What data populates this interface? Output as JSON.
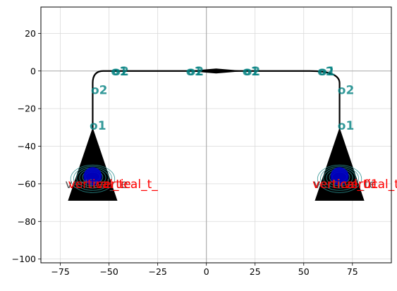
{
  "chart_data": {
    "type": "layout",
    "title": "",
    "xlabel": "",
    "ylabel": "",
    "xlim": [
      -85,
      95
    ],
    "ylim": [
      -102,
      34
    ],
    "xticks": [
      -75,
      -50,
      -25,
      0,
      25,
      50,
      75
    ],
    "yticks": [
      -100,
      -80,
      -60,
      -40,
      -20,
      0,
      20
    ],
    "grid": true,
    "origin_axes": true,
    "route": {
      "points": [
        [
          -58.4,
          -30.6
        ],
        [
          -58.4,
          -6.5
        ],
        [
          -53,
          0
        ],
        [
          53,
          0
        ],
        [
          68.4,
          -6.5
        ],
        [
          68.4,
          -30.6
        ]
      ],
      "color": "#000000"
    },
    "taper": {
      "x_start": -10,
      "x_end": 20,
      "half_width": 1.3
    },
    "grating_couplers": [
      {
        "name": "vertical_te",
        "x": -58.4,
        "label_x": -72.5,
        "label_color": "#555555"
      },
      {
        "name": "vertical_te",
        "x": 68.4,
        "label_x": 55.0,
        "label_color": "#555555"
      }
    ],
    "component_labels": [
      {
        "text": "vertical_te",
        "x": -71.0,
        "y": -60,
        "color": "#ff0000"
      },
      {
        "text": "vertical_t_",
        "x": -56.5,
        "y": -60,
        "color": "#ff0000"
      },
      {
        "text": "vertical_01",
        "x": 54.5,
        "y": -60,
        "color": "#ff0000"
      },
      {
        "text": "vertical_t_",
        "x": 70.5,
        "y": -60,
        "color": "#ff0000"
      }
    ],
    "ports": [
      {
        "text": "o1",
        "x": -60.0,
        "y": -29
      },
      {
        "text": "o2",
        "x": -59.3,
        "y": -10
      },
      {
        "text": "o1",
        "x": -49.0,
        "y": 0
      },
      {
        "text": "o2",
        "x": -48.3,
        "y": 0
      },
      {
        "text": "o1",
        "x": -10.5,
        "y": 0
      },
      {
        "text": "o2",
        "x": -9.8,
        "y": 0
      },
      {
        "text": "o1",
        "x": 18.5,
        "y": 0
      },
      {
        "text": "o2",
        "x": 19.2,
        "y": 0
      },
      {
        "text": "o2",
        "x": 57.0,
        "y": 0
      },
      {
        "text": "o1",
        "x": 57.7,
        "y": 0
      },
      {
        "text": "o2",
        "x": 67.4,
        "y": -10
      },
      {
        "text": "o1",
        "x": 67.4,
        "y": -29
      }
    ]
  }
}
